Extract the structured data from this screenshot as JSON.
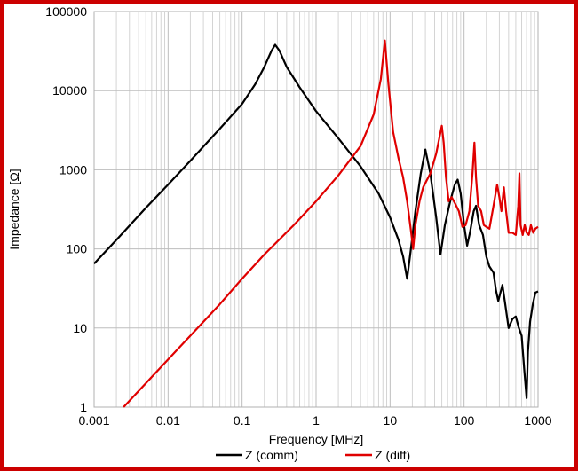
{
  "chart_data": {
    "type": "line",
    "xlabel": "Frequency [MHz]",
    "ylabel": "Impedance [Ω]",
    "x_scale": "log",
    "y_scale": "log",
    "xlim": [
      0.001,
      1000
    ],
    "ylim": [
      1,
      100000
    ],
    "grid": true,
    "legend_position": "bottom",
    "x_tick_labels": [
      "0.001",
      "0.01",
      "0.1",
      "1",
      "10",
      "100",
      "1000"
    ],
    "y_tick_labels": [
      "1",
      "10",
      "100",
      "1000",
      "10000",
      "100000"
    ],
    "series": [
      {
        "name": "Z (comm)",
        "color": "#000000",
        "points": [
          [
            0.001,
            65
          ],
          [
            0.002,
            130
          ],
          [
            0.005,
            330
          ],
          [
            0.01,
            650
          ],
          [
            0.02,
            1300
          ],
          [
            0.05,
            3300
          ],
          [
            0.1,
            6800
          ],
          [
            0.15,
            12000
          ],
          [
            0.2,
            20000
          ],
          [
            0.25,
            32000
          ],
          [
            0.28,
            38000
          ],
          [
            0.32,
            32000
          ],
          [
            0.4,
            20000
          ],
          [
            0.6,
            11000
          ],
          [
            1,
            5500
          ],
          [
            2,
            2500
          ],
          [
            4,
            1100
          ],
          [
            7,
            500
          ],
          [
            10,
            250
          ],
          [
            13,
            130
          ],
          [
            15,
            80
          ],
          [
            17,
            42
          ],
          [
            19,
            95
          ],
          [
            22,
            300
          ],
          [
            26,
            900
          ],
          [
            30,
            1800
          ],
          [
            35,
            900
          ],
          [
            42,
            250
          ],
          [
            48,
            85
          ],
          [
            55,
            200
          ],
          [
            65,
            400
          ],
          [
            75,
            650
          ],
          [
            82,
            750
          ],
          [
            90,
            500
          ],
          [
            100,
            200
          ],
          [
            110,
            110
          ],
          [
            120,
            160
          ],
          [
            135,
            300
          ],
          [
            145,
            350
          ],
          [
            160,
            200
          ],
          [
            180,
            150
          ],
          [
            200,
            80
          ],
          [
            220,
            60
          ],
          [
            250,
            50
          ],
          [
            270,
            30
          ],
          [
            290,
            22
          ],
          [
            330,
            35
          ],
          [
            360,
            20
          ],
          [
            400,
            10
          ],
          [
            450,
            13
          ],
          [
            500,
            14
          ],
          [
            550,
            10
          ],
          [
            600,
            8
          ],
          [
            650,
            3
          ],
          [
            700,
            1.3
          ],
          [
            730,
            5
          ],
          [
            780,
            12
          ],
          [
            850,
            20
          ],
          [
            920,
            28
          ],
          [
            1000,
            29
          ]
        ]
      },
      {
        "name": "Z (diff)",
        "color": "#e00000",
        "points": [
          [
            0.0025,
            1
          ],
          [
            0.005,
            2
          ],
          [
            0.01,
            4
          ],
          [
            0.02,
            8
          ],
          [
            0.05,
            20
          ],
          [
            0.1,
            42
          ],
          [
            0.2,
            85
          ],
          [
            0.5,
            200
          ],
          [
            1,
            400
          ],
          [
            2,
            850
          ],
          [
            4,
            2000
          ],
          [
            6,
            5000
          ],
          [
            7.5,
            14000
          ],
          [
            8.5,
            43000
          ],
          [
            9.5,
            12000
          ],
          [
            11,
            3000
          ],
          [
            13,
            1400
          ],
          [
            15,
            800
          ],
          [
            17,
            400
          ],
          [
            19,
            180
          ],
          [
            20.5,
            100
          ],
          [
            22,
            200
          ],
          [
            25,
            400
          ],
          [
            28,
            600
          ],
          [
            35,
            900
          ],
          [
            42,
            1600
          ],
          [
            50,
            3600
          ],
          [
            53,
            2200
          ],
          [
            57,
            800
          ],
          [
            62,
            400
          ],
          [
            68,
            450
          ],
          [
            75,
            380
          ],
          [
            85,
            300
          ],
          [
            95,
            190
          ],
          [
            105,
            200
          ],
          [
            118,
            300
          ],
          [
            130,
            900
          ],
          [
            138,
            2200
          ],
          [
            145,
            800
          ],
          [
            155,
            350
          ],
          [
            170,
            300
          ],
          [
            185,
            200
          ],
          [
            200,
            190
          ],
          [
            220,
            180
          ],
          [
            250,
            350
          ],
          [
            280,
            650
          ],
          [
            300,
            450
          ],
          [
            320,
            300
          ],
          [
            345,
            600
          ],
          [
            370,
            300
          ],
          [
            400,
            160
          ],
          [
            450,
            160
          ],
          [
            500,
            150
          ],
          [
            540,
            350
          ],
          [
            560,
            900
          ],
          [
            580,
            200
          ],
          [
            620,
            150
          ],
          [
            660,
            200
          ],
          [
            700,
            160
          ],
          [
            750,
            150
          ],
          [
            800,
            200
          ],
          [
            860,
            160
          ],
          [
            920,
            180
          ],
          [
            1000,
            190
          ]
        ]
      }
    ]
  }
}
